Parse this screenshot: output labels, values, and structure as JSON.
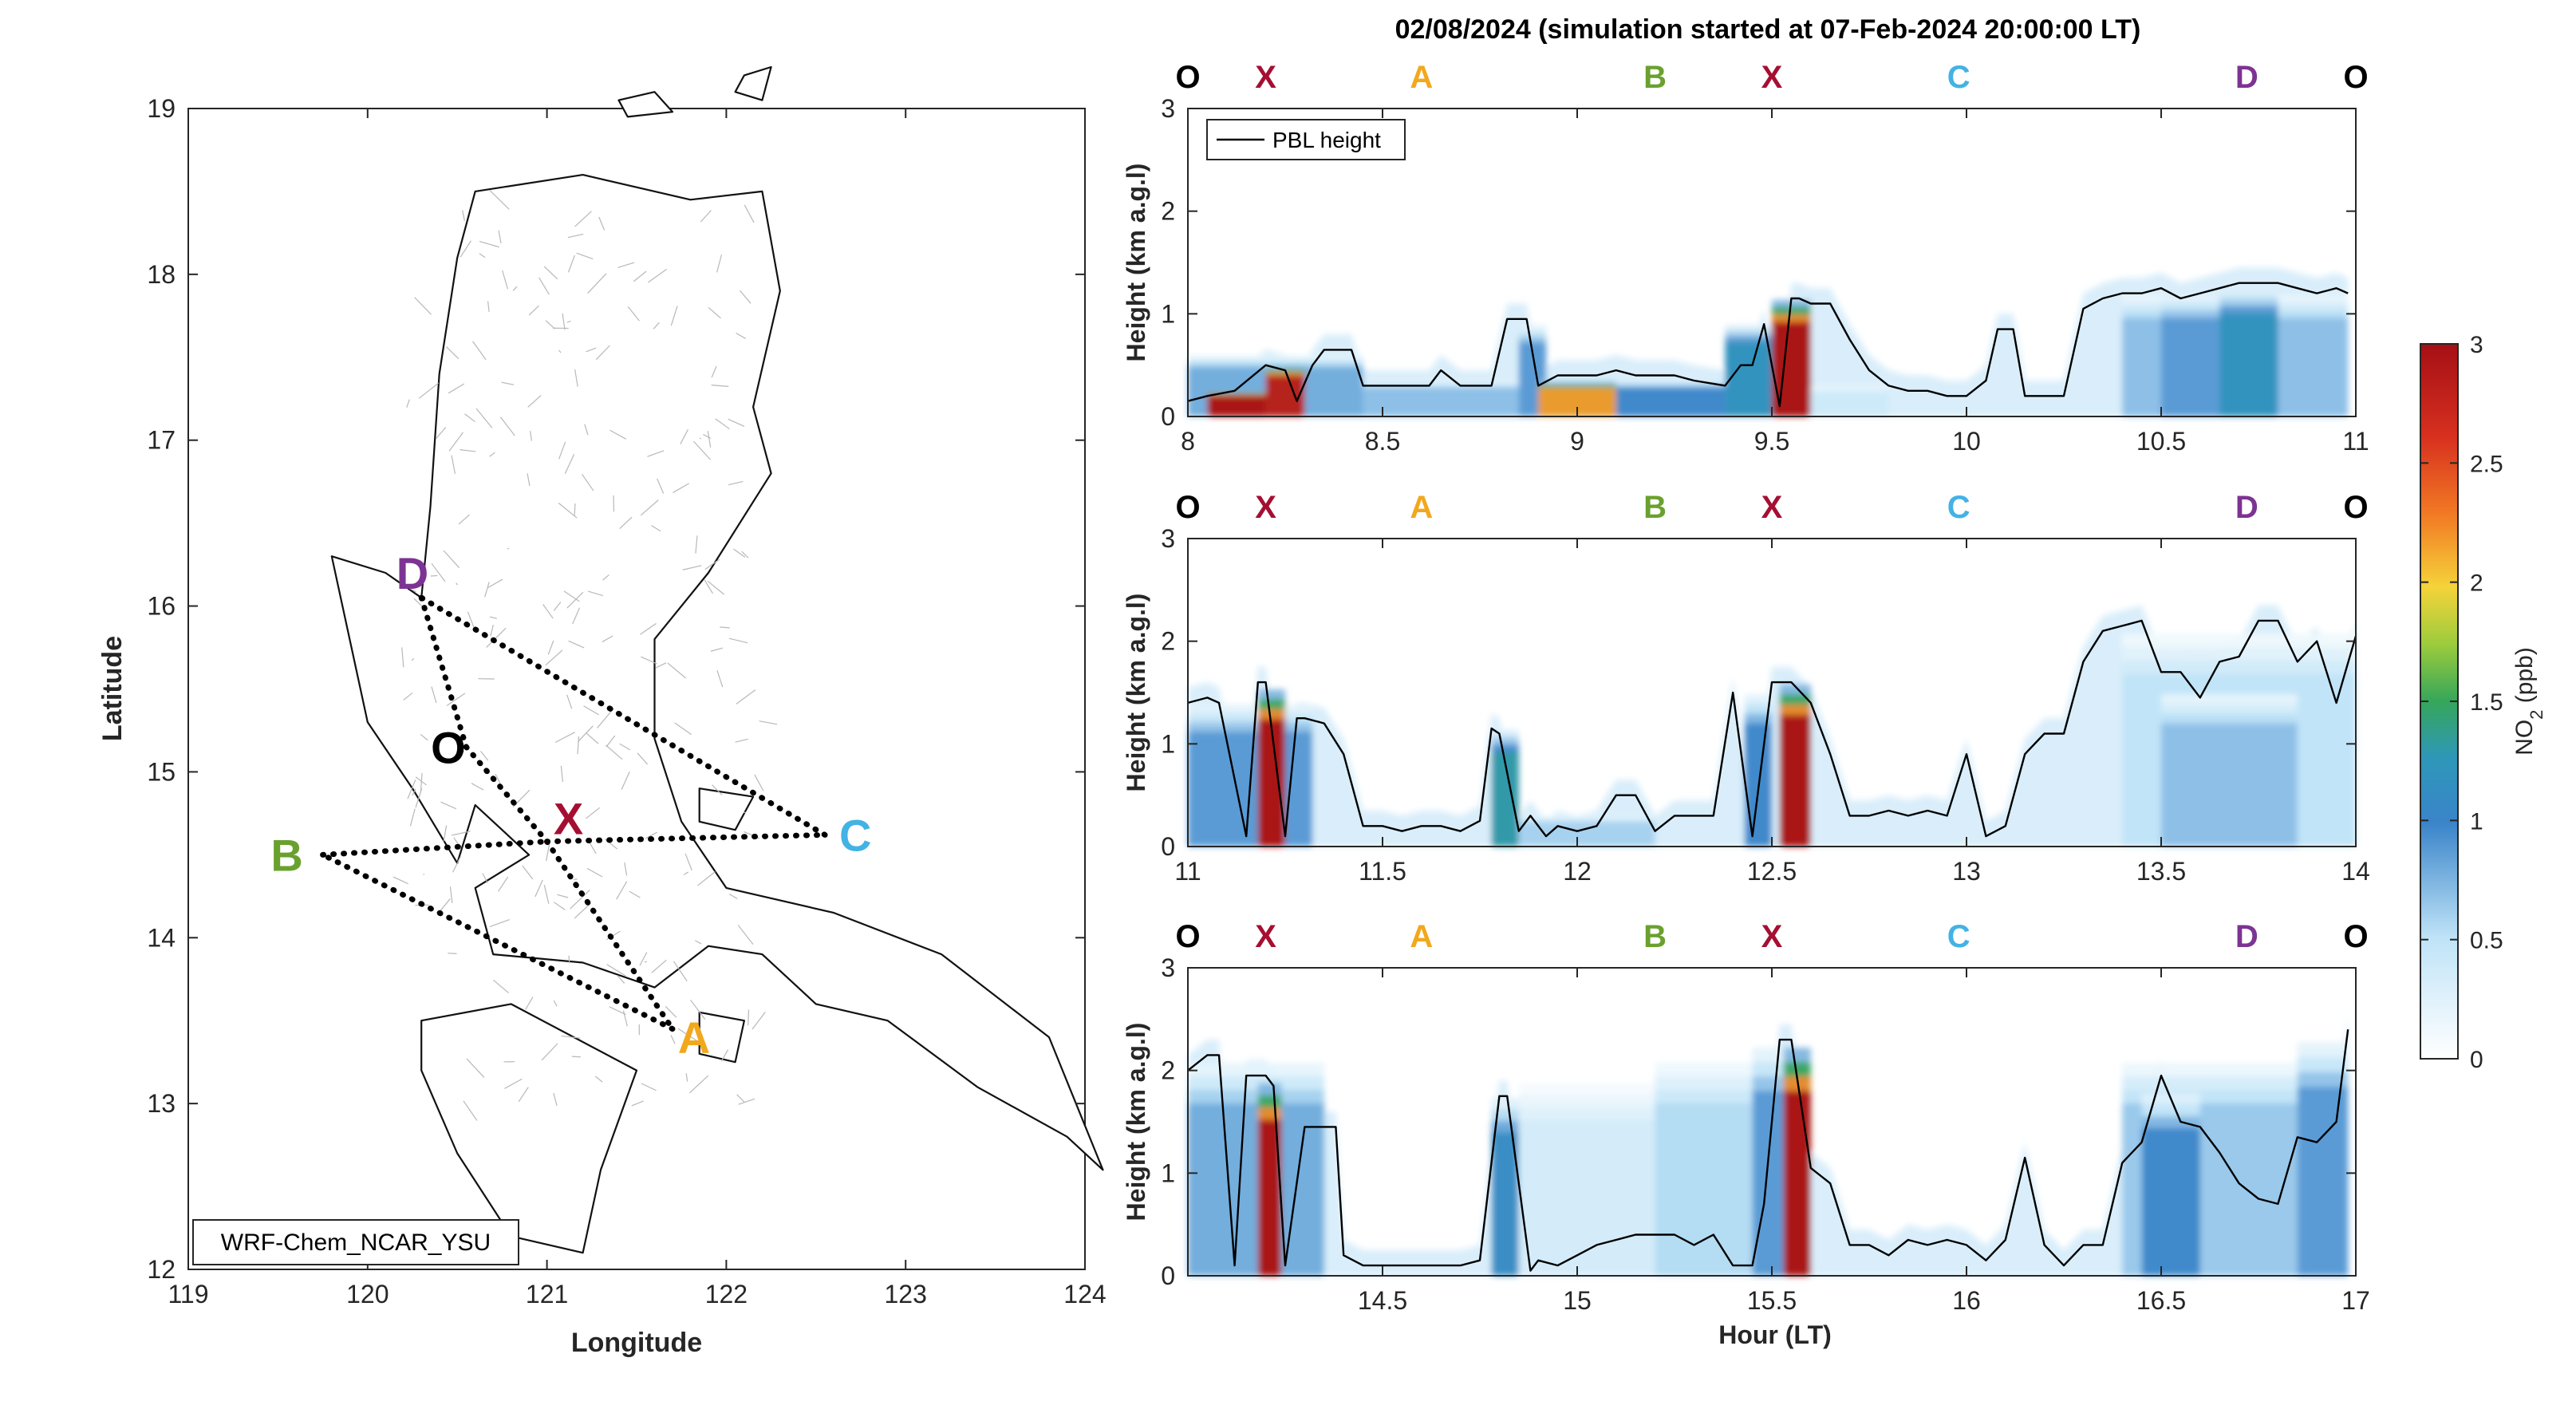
{
  "title": "02/08/2024 (simulation started at 07-Feb-2024 20:00:00 LT)",
  "colors": {
    "axis": "#262626",
    "pbl": "#000000",
    "markers": {
      "O": "#000000",
      "X": "#a50f32",
      "A": "#f2a81d",
      "B": "#6aa12e",
      "C": "#43b2e4",
      "D": "#7d3393"
    }
  },
  "map": {
    "xlabel": "Longitude",
    "ylabel": "Latitude",
    "xlim": [
      119,
      124
    ],
    "ylim": [
      12,
      19
    ],
    "xticks": [
      "119",
      "120",
      "121",
      "122",
      "123",
      "124"
    ],
    "yticks": [
      "12",
      "13",
      "14",
      "15",
      "16",
      "17",
      "18",
      "19"
    ],
    "model_label": "WRF-Chem_NCAR_YSU",
    "sites": [
      {
        "id": "D",
        "label": "D",
        "lon": 120.3,
        "lat": 16.05,
        "label_lon": 120.25,
        "label_lat": 16.2
      },
      {
        "id": "O",
        "label": "O",
        "lon": 120.55,
        "lat": 15.15,
        "label_lon": 120.45,
        "label_lat": 15.15
      },
      {
        "id": "X",
        "label": "X",
        "lon": 121.0,
        "lat": 14.58,
        "label_lon": 121.12,
        "label_lat": 14.72
      },
      {
        "id": "B",
        "label": "B",
        "lon": 119.75,
        "lat": 14.5,
        "label_lon": 119.55,
        "label_lat": 14.5
      },
      {
        "id": "C",
        "label": "C",
        "lon": 122.55,
        "lat": 14.62,
        "label_lon": 122.72,
        "label_lat": 14.62
      },
      {
        "id": "A",
        "label": "A",
        "lon": 121.7,
        "lat": 13.45,
        "label_lon": 121.82,
        "label_lat": 13.4
      }
    ],
    "flight_path": [
      "O",
      "X",
      "A",
      "B",
      "X",
      "C",
      "D",
      "O"
    ]
  },
  "colorbar": {
    "label": "NO2 (ppb)",
    "label_main": "NO",
    "label_sub": "2",
    "label_unit": " (ppb)",
    "ticks": [
      "0",
      "0.5",
      "1",
      "1.5",
      "2",
      "2.5",
      "3"
    ],
    "range": [
      0,
      3
    ]
  },
  "chart_data": [
    {
      "type": "heatmap",
      "title": "02/08/2024 (simulation started at 07-Feb-2024 20:00:00 LT)",
      "ylabel": "Height (km a.g.l)",
      "xlim": [
        8,
        11
      ],
      "ylim": [
        0,
        3
      ],
      "xticks": [
        "8",
        "8.5",
        "9",
        "9.5",
        "10",
        "10.5",
        "11"
      ],
      "yticks": [
        "0",
        "1",
        "2",
        "3"
      ],
      "legend": "PBL height",
      "legend_position": "top-left",
      "waypoints": [
        {
          "label": "O",
          "x": 8.0
        },
        {
          "label": "X",
          "x": 8.2
        },
        {
          "label": "A",
          "x": 8.6
        },
        {
          "label": "B",
          "x": 9.2
        },
        {
          "label": "X",
          "x": 9.5
        },
        {
          "label": "C",
          "x": 9.98
        },
        {
          "label": "D",
          "x": 10.72
        },
        {
          "label": "O",
          "x": 11.0
        }
      ],
      "pbl_height": {
        "x": [
          8.0,
          8.05,
          8.12,
          8.2,
          8.25,
          8.28,
          8.32,
          8.35,
          8.42,
          8.45,
          8.5,
          8.55,
          8.62,
          8.65,
          8.7,
          8.78,
          8.82,
          8.87,
          8.9,
          8.95,
          9.0,
          9.05,
          9.1,
          9.15,
          9.2,
          9.25,
          9.3,
          9.38,
          9.42,
          9.45,
          9.48,
          9.52,
          9.55,
          9.57,
          9.6,
          9.65,
          9.7,
          9.75,
          9.8,
          9.85,
          9.9,
          9.95,
          10.0,
          10.05,
          10.08,
          10.12,
          10.15,
          10.2,
          10.25,
          10.3,
          10.35,
          10.4,
          10.45,
          10.5,
          10.55,
          10.6,
          10.65,
          10.7,
          10.75,
          10.8,
          10.85,
          10.9,
          10.95,
          10.98
        ],
        "y": [
          0.15,
          0.2,
          0.25,
          0.5,
          0.45,
          0.15,
          0.5,
          0.65,
          0.65,
          0.3,
          0.3,
          0.3,
          0.3,
          0.45,
          0.3,
          0.3,
          0.95,
          0.95,
          0.3,
          0.4,
          0.4,
          0.4,
          0.45,
          0.4,
          0.4,
          0.4,
          0.35,
          0.3,
          0.5,
          0.5,
          0.9,
          0.1,
          1.15,
          1.15,
          1.1,
          1.1,
          0.75,
          0.45,
          0.3,
          0.25,
          0.25,
          0.2,
          0.2,
          0.35,
          0.85,
          0.85,
          0.2,
          0.2,
          0.2,
          1.05,
          1.15,
          1.2,
          1.2,
          1.25,
          1.15,
          1.2,
          1.25,
          1.3,
          1.3,
          1.3,
          1.25,
          1.2,
          1.25,
          1.2
        ]
      },
      "no2_blobs": [
        {
          "x0": 8.0,
          "x1": 8.45,
          "ymax": 0.6,
          "level": 0.8
        },
        {
          "x0": 8.05,
          "x1": 8.22,
          "ymax": 0.25,
          "level": 3.0
        },
        {
          "x0": 8.2,
          "x1": 8.3,
          "ymax": 0.5,
          "level": 2.9
        },
        {
          "x0": 8.45,
          "x1": 8.85,
          "ymax": 0.35,
          "level": 0.7
        },
        {
          "x0": 8.85,
          "x1": 8.92,
          "ymax": 0.9,
          "level": 0.9
        },
        {
          "x0": 8.9,
          "x1": 9.1,
          "ymax": 0.35,
          "level": 2.2
        },
        {
          "x0": 9.1,
          "x1": 9.45,
          "ymax": 0.35,
          "level": 1.0
        },
        {
          "x0": 9.38,
          "x1": 9.5,
          "ymax": 0.9,
          "level": 1.2
        },
        {
          "x0": 9.5,
          "x1": 9.6,
          "ymax": 1.15,
          "level": 3.0
        },
        {
          "x0": 9.6,
          "x1": 9.8,
          "ymax": 0.3,
          "level": 0.4
        },
        {
          "x0": 10.4,
          "x1": 10.98,
          "ymax": 1.2,
          "level": 0.7
        },
        {
          "x0": 10.5,
          "x1": 10.75,
          "ymax": 1.2,
          "level": 0.9
        },
        {
          "x0": 10.65,
          "x1": 10.8,
          "ymax": 1.25,
          "level": 1.2
        }
      ]
    },
    {
      "type": "heatmap",
      "ylabel": "Height (km a.g.l)",
      "xlim": [
        11,
        14
      ],
      "ylim": [
        0,
        3
      ],
      "xticks": [
        "11",
        "11.5",
        "12",
        "12.5",
        "13",
        "13.5",
        "14"
      ],
      "yticks": [
        "0",
        "1",
        "2",
        "3"
      ],
      "waypoints": [
        {
          "label": "O",
          "x": 11.0
        },
        {
          "label": "X",
          "x": 11.2
        },
        {
          "label": "A",
          "x": 11.6
        },
        {
          "label": "B",
          "x": 12.2
        },
        {
          "label": "X",
          "x": 12.5
        },
        {
          "label": "C",
          "x": 12.98
        },
        {
          "label": "D",
          "x": 13.72
        },
        {
          "label": "O",
          "x": 14.0
        }
      ],
      "pbl_height": {
        "x": [
          11.0,
          11.05,
          11.08,
          11.15,
          11.18,
          11.2,
          11.25,
          11.28,
          11.3,
          11.35,
          11.4,
          11.45,
          11.5,
          11.55,
          11.6,
          11.65,
          11.7,
          11.75,
          11.78,
          11.8,
          11.85,
          11.88,
          11.92,
          11.95,
          12.0,
          12.05,
          12.1,
          12.15,
          12.2,
          12.25,
          12.3,
          12.35,
          12.4,
          12.45,
          12.5,
          12.55,
          12.6,
          12.65,
          12.7,
          12.75,
          12.8,
          12.85,
          12.9,
          12.95,
          13.0,
          13.05,
          13.1,
          13.15,
          13.2,
          13.25,
          13.3,
          13.35,
          13.4,
          13.45,
          13.5,
          13.55,
          13.6,
          13.65,
          13.7,
          13.75,
          13.8,
          13.85,
          13.9,
          13.95,
          14.0
        ],
        "y": [
          1.4,
          1.45,
          1.4,
          0.1,
          1.6,
          1.6,
          0.1,
          1.25,
          1.25,
          1.2,
          0.9,
          0.2,
          0.2,
          0.15,
          0.2,
          0.2,
          0.15,
          0.25,
          1.15,
          1.1,
          0.15,
          0.3,
          0.1,
          0.2,
          0.15,
          0.2,
          0.5,
          0.5,
          0.15,
          0.3,
          0.3,
          0.3,
          1.5,
          0.1,
          1.6,
          1.6,
          1.4,
          0.9,
          0.3,
          0.3,
          0.35,
          0.3,
          0.35,
          0.3,
          0.9,
          0.1,
          0.2,
          0.9,
          1.1,
          1.1,
          1.8,
          2.1,
          2.15,
          2.2,
          1.7,
          1.7,
          1.45,
          1.8,
          1.85,
          2.2,
          2.2,
          1.8,
          2.0,
          1.4,
          2.05
        ]
      },
      "no2_blobs": [
        {
          "x0": 11.0,
          "x1": 11.32,
          "ymax": 1.4,
          "level": 0.9
        },
        {
          "x0": 11.18,
          "x1": 11.25,
          "ymax": 1.55,
          "level": 3.0
        },
        {
          "x0": 11.78,
          "x1": 11.85,
          "ymax": 1.15,
          "level": 1.3
        },
        {
          "x0": 11.85,
          "x1": 12.2,
          "ymax": 0.3,
          "level": 0.6
        },
        {
          "x0": 12.43,
          "x1": 12.5,
          "ymax": 1.5,
          "level": 1.0
        },
        {
          "x0": 12.52,
          "x1": 12.6,
          "ymax": 1.6,
          "level": 3.0
        },
        {
          "x0": 13.4,
          "x1": 14.0,
          "ymax": 2.1,
          "level": 0.5
        },
        {
          "x0": 13.5,
          "x1": 13.85,
          "ymax": 1.5,
          "level": 0.7
        }
      ]
    },
    {
      "type": "heatmap",
      "xlabel": "Hour (LT)",
      "ylabel": "Height (km a.g.l)",
      "xlim": [
        14,
        17
      ],
      "ylim": [
        0,
        3
      ],
      "xticks": [
        "14.5",
        "15",
        "15.5",
        "16",
        "16.5",
        "17"
      ],
      "yticks": [
        "0",
        "1",
        "2",
        "3"
      ],
      "waypoints": [
        {
          "label": "O",
          "x": 14.0
        },
        {
          "label": "X",
          "x": 14.2
        },
        {
          "label": "A",
          "x": 14.6
        },
        {
          "label": "B",
          "x": 15.2
        },
        {
          "label": "X",
          "x": 15.5
        },
        {
          "label": "C",
          "x": 15.98
        },
        {
          "label": "D",
          "x": 16.72
        },
        {
          "label": "O",
          "x": 17.0
        }
      ],
      "pbl_height": {
        "x": [
          14.0,
          14.05,
          14.08,
          14.12,
          14.15,
          14.2,
          14.22,
          14.25,
          14.3,
          14.38,
          14.4,
          14.45,
          14.5,
          14.55,
          14.6,
          14.65,
          14.7,
          14.75,
          14.8,
          14.82,
          14.88,
          14.9,
          14.95,
          15.0,
          15.05,
          15.1,
          15.15,
          15.2,
          15.25,
          15.3,
          15.35,
          15.4,
          15.45,
          15.48,
          15.52,
          15.55,
          15.6,
          15.65,
          15.7,
          15.75,
          15.8,
          15.85,
          15.9,
          15.95,
          16.0,
          16.05,
          16.1,
          16.15,
          16.2,
          16.25,
          16.3,
          16.35,
          16.4,
          16.45,
          16.5,
          16.55,
          16.6,
          16.65,
          16.7,
          16.75,
          16.8,
          16.85,
          16.9,
          16.95,
          16.98
        ],
        "y": [
          2.0,
          2.15,
          2.15,
          0.1,
          1.95,
          1.95,
          1.85,
          0.1,
          1.45,
          1.45,
          0.2,
          0.1,
          0.1,
          0.1,
          0.1,
          0.1,
          0.1,
          0.15,
          1.75,
          1.75,
          0.05,
          0.15,
          0.1,
          0.2,
          0.3,
          0.35,
          0.4,
          0.4,
          0.4,
          0.3,
          0.4,
          0.1,
          0.1,
          0.7,
          2.3,
          2.3,
          1.05,
          0.9,
          0.3,
          0.3,
          0.2,
          0.35,
          0.3,
          0.35,
          0.3,
          0.15,
          0.35,
          1.15,
          0.3,
          0.1,
          0.3,
          0.3,
          1.1,
          1.3,
          1.95,
          1.5,
          1.45,
          1.2,
          0.9,
          0.75,
          0.7,
          1.35,
          1.3,
          1.5,
          2.4
        ]
      },
      "no2_blobs": [
        {
          "x0": 14.0,
          "x1": 14.35,
          "ymax": 2.1,
          "level": 0.8
        },
        {
          "x0": 14.18,
          "x1": 14.24,
          "ymax": 1.9,
          "level": 3.0
        },
        {
          "x0": 14.78,
          "x1": 14.85,
          "ymax": 1.75,
          "level": 1.1
        },
        {
          "x0": 14.85,
          "x1": 15.45,
          "ymax": 1.9,
          "level": 0.35
        },
        {
          "x0": 15.2,
          "x1": 15.48,
          "ymax": 2.1,
          "level": 0.55
        },
        {
          "x0": 15.45,
          "x1": 15.53,
          "ymax": 2.25,
          "level": 0.9
        },
        {
          "x0": 15.53,
          "x1": 15.6,
          "ymax": 2.25,
          "level": 3.0
        },
        {
          "x0": 16.4,
          "x1": 16.98,
          "ymax": 2.1,
          "level": 0.65
        },
        {
          "x0": 16.45,
          "x1": 16.6,
          "ymax": 1.8,
          "level": 1.0
        },
        {
          "x0": 16.85,
          "x1": 16.98,
          "ymax": 2.3,
          "level": 0.9
        }
      ]
    }
  ]
}
